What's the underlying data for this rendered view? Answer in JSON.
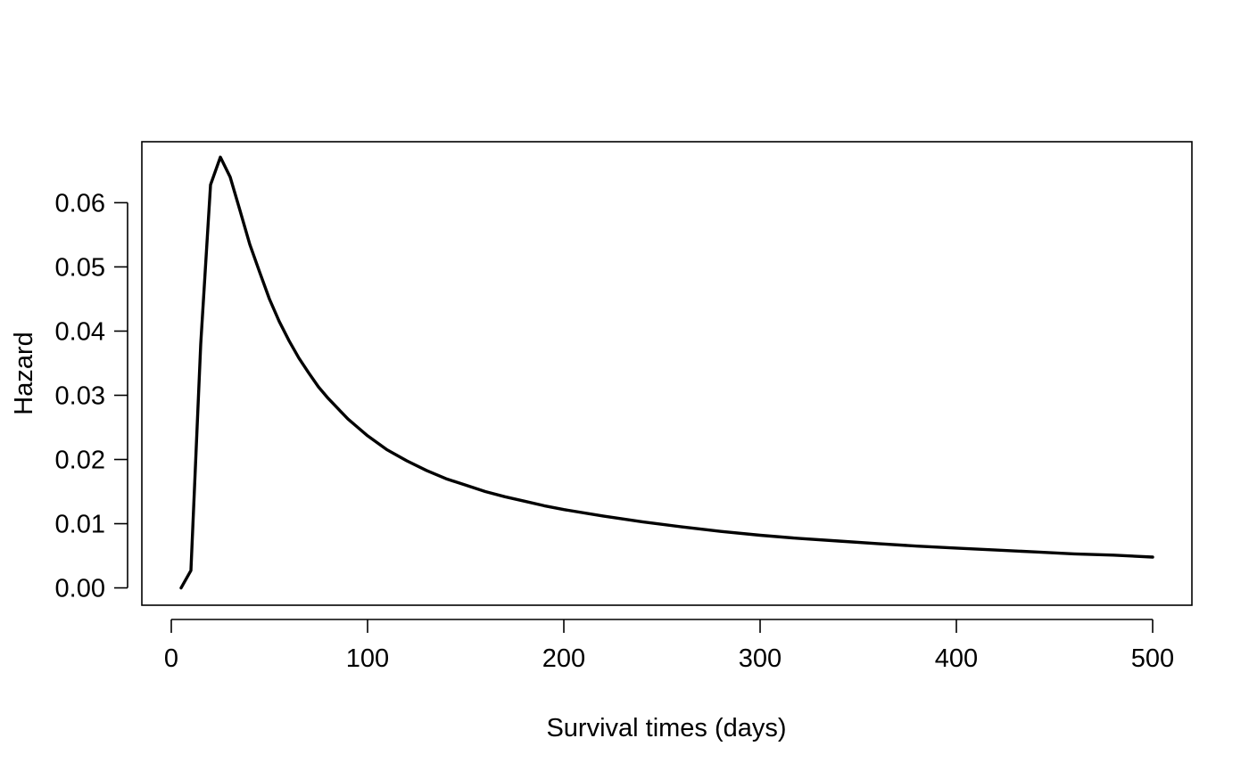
{
  "chart_data": {
    "type": "line",
    "xlabel": "Survival times (days)",
    "ylabel": "Hazard",
    "xlim": [
      -15,
      520
    ],
    "ylim": [
      -0.0027,
      0.0695
    ],
    "xticks": [
      0,
      100,
      200,
      300,
      400,
      500
    ],
    "xtick_labels": [
      "0",
      "100",
      "200",
      "300",
      "400",
      "500"
    ],
    "yticks": [
      0,
      0.01,
      0.02,
      0.03,
      0.04,
      0.05,
      0.06
    ],
    "ytick_labels": [
      "0.00",
      "0.01",
      "0.02",
      "0.03",
      "0.04",
      "0.05",
      "0.06"
    ],
    "grid": false,
    "series": [
      {
        "color": "#000000",
        "x": [
          5,
          10,
          15,
          20,
          25,
          30,
          35,
          40,
          45,
          50,
          55,
          60,
          65,
          70,
          75,
          80,
          85,
          90,
          95,
          100,
          110,
          120,
          130,
          140,
          150,
          160,
          170,
          180,
          190,
          200,
          220,
          240,
          260,
          280,
          300,
          320,
          340,
          360,
          380,
          400,
          420,
          440,
          460,
          480,
          500
        ],
        "y": [
          0.0,
          0.0027,
          0.038,
          0.0628,
          0.0671,
          0.064,
          0.0588,
          0.0535,
          0.0492,
          0.045,
          0.0415,
          0.0385,
          0.0358,
          0.0335,
          0.0313,
          0.0295,
          0.0279,
          0.0263,
          0.025,
          0.0237,
          0.0215,
          0.0198,
          0.0183,
          0.017,
          0.016,
          0.015,
          0.0142,
          0.0135,
          0.0128,
          0.0122,
          0.0112,
          0.0103,
          0.0095,
          0.0088,
          0.0082,
          0.0077,
          0.0073,
          0.0069,
          0.0065,
          0.0062,
          0.0059,
          0.0056,
          0.0053,
          0.0051,
          0.0048
        ]
      }
    ]
  }
}
